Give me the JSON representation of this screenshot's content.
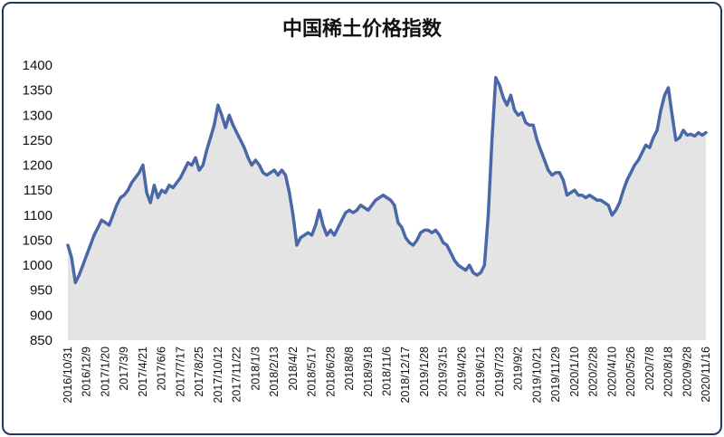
{
  "chart_data": {
    "type": "area",
    "title": "中国稀土价格指数",
    "xlabel": "",
    "ylabel": "",
    "ylim": [
      850,
      1400
    ],
    "yticks": [
      850,
      900,
      950,
      1000,
      1050,
      1100,
      1150,
      1200,
      1250,
      1300,
      1350,
      1400
    ],
    "grid": false,
    "legend": "none",
    "colors": {
      "line": "#4a67a8",
      "fill": "#e4e4e4",
      "frame": "#1f3864"
    },
    "x_tick_labels": [
      "2016/10/31",
      "2016/12/9",
      "2017/1/20",
      "2017/3/9",
      "2017/4/21",
      "2017/6/6",
      "2017/7/17",
      "2017/8/25",
      "2017/10/12",
      "2017/11/22",
      "2018/1/3",
      "2018/2/13",
      "2018/4/2",
      "2018/5/17",
      "2018/6/28",
      "2018/8/8",
      "2018/9/18",
      "2018/11/6",
      "2018/12/17",
      "2019/1/28",
      "2019/3/15",
      "2019/4/26",
      "2019/6/12",
      "2019/7/23",
      "2019/9/2",
      "2019/10/21",
      "2019/11/29",
      "2020/1/10",
      "2020/2/28",
      "2020/4/10",
      "2020/5/26",
      "2020/7/8",
      "2020/8/18",
      "2020/9/28",
      "2020/11/16"
    ],
    "series": [
      {
        "values": [
          1040,
          1015,
          965,
          980,
          1000,
          1020,
          1040,
          1060,
          1075,
          1090,
          1085,
          1080,
          1100,
          1120,
          1135,
          1140,
          1150,
          1165,
          1175,
          1185,
          1200,
          1145,
          1125,
          1160,
          1135,
          1150,
          1145,
          1160,
          1155,
          1165,
          1175,
          1190,
          1205,
          1200,
          1215,
          1190,
          1200,
          1230,
          1255,
          1280,
          1320,
          1300,
          1275,
          1300,
          1280,
          1265,
          1250,
          1235,
          1215,
          1200,
          1210,
          1200,
          1185,
          1180,
          1185,
          1190,
          1180,
          1190,
          1180,
          1145,
          1100,
          1040,
          1055,
          1060,
          1065,
          1060,
          1080,
          1110,
          1080,
          1060,
          1070,
          1060,
          1075,
          1090,
          1105,
          1110,
          1105,
          1110,
          1120,
          1115,
          1110,
          1120,
          1130,
          1135,
          1140,
          1135,
          1130,
          1120,
          1085,
          1075,
          1055,
          1045,
          1040,
          1050,
          1065,
          1070,
          1070,
          1065,
          1070,
          1060,
          1045,
          1040,
          1025,
          1010,
          1000,
          995,
          990,
          1000,
          985,
          980,
          985,
          1000,
          1100,
          1250,
          1375,
          1360,
          1335,
          1320,
          1340,
          1310,
          1300,
          1305,
          1285,
          1280,
          1280,
          1250,
          1230,
          1210,
          1190,
          1180,
          1185,
          1185,
          1170,
          1140,
          1145,
          1150,
          1140,
          1140,
          1135,
          1140,
          1135,
          1130,
          1130,
          1125,
          1120,
          1100,
          1110,
          1125,
          1150,
          1170,
          1185,
          1200,
          1210,
          1225,
          1240,
          1235,
          1255,
          1270,
          1310,
          1340,
          1355,
          1300,
          1250,
          1255,
          1270,
          1260,
          1262,
          1258,
          1265,
          1260,
          1265
        ]
      }
    ]
  }
}
